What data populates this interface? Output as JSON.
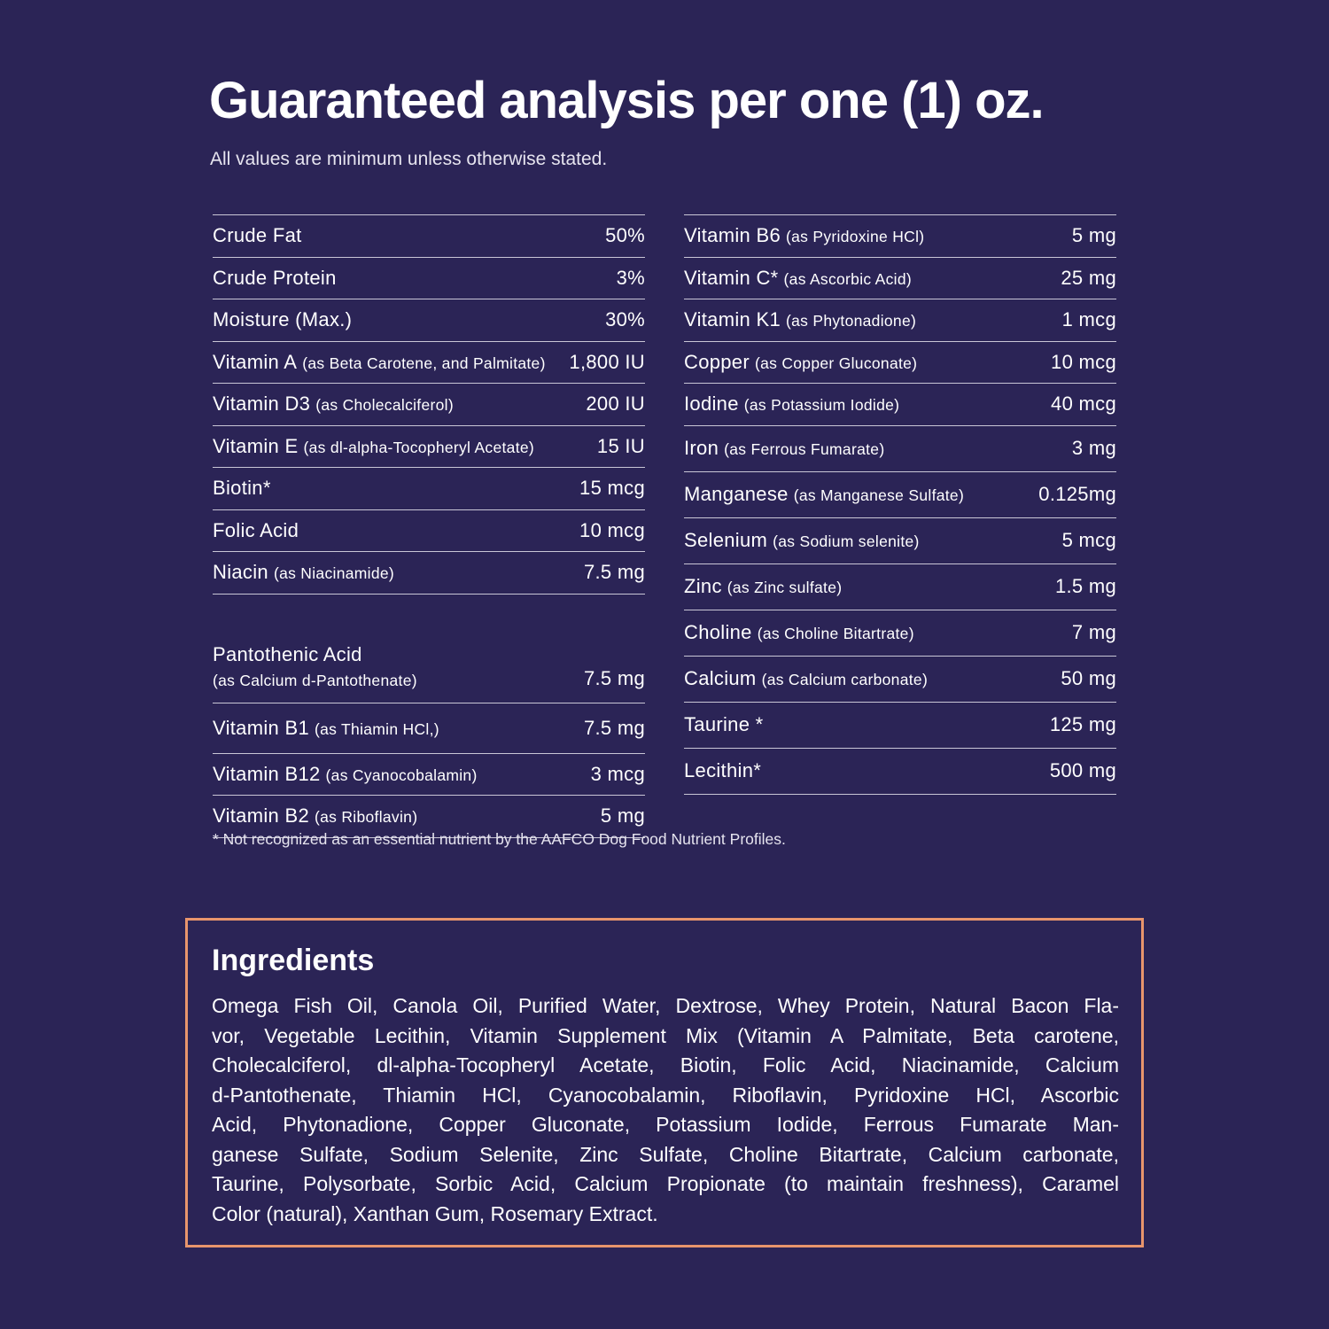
{
  "header": {
    "title": "Guaranteed analysis per one (1) oz.",
    "subtitle": "All values are minimum unless otherwise stated."
  },
  "table": {
    "left": [
      {
        "name": "Crude Fat",
        "value": "50%"
      },
      {
        "name": "Crude Protein",
        "value": "3%"
      },
      {
        "name": "Moisture (Max.)",
        "value": "30%"
      },
      {
        "name": "Vitamin A",
        "note": "(as Beta Carotene, and Palmitate)",
        "value": "1,800 IU"
      },
      {
        "name": "Vitamin D3",
        "note": "(as Cholecalciferol)",
        "value": "200 IU"
      },
      {
        "name": "Vitamin E",
        "note": "(as dl-alpha-Tocopheryl Acetate)",
        "value": "15 IU"
      },
      {
        "name": "Biotin*",
        "value": "15 mcg"
      },
      {
        "name": "Folic Acid",
        "value": "10 mcg"
      },
      {
        "name": "Niacin",
        "note": "(as Niacinamide)",
        "value": "7.5 mg"
      },
      {
        "name": "Pantothenic Acid",
        "note": "(as Calcium d-Pantothenate)",
        "value": "7.5 mg"
      },
      {
        "name": "Vitamin B1",
        "note": "(as Thiamin HCl,)",
        "value": "7.5 mg"
      },
      {
        "name": "Vitamin B12",
        "note": "(as Cyanocobalamin)",
        "value": "3 mcg"
      },
      {
        "name": "Vitamin B2",
        "note": "(as Riboflavin)",
        "value": "5 mg"
      }
    ],
    "right": [
      {
        "name": "Vitamin B6",
        "note": "(as Pyridoxine HCl)",
        "value": "5 mg"
      },
      {
        "name": "Vitamin C*",
        "note": "(as Ascorbic Acid)",
        "value": "25 mg"
      },
      {
        "name": "Vitamin K1",
        "note": "(as Phytonadione)",
        "value": "1 mcg"
      },
      {
        "name": "Copper",
        "note": "(as Copper Gluconate)",
        "value": "10 mcg"
      },
      {
        "name": "Iodine",
        "note": "(as Potassium Iodide)",
        "value": "40 mcg"
      },
      {
        "name": "Iron",
        "note": "(as Ferrous Fumarate)",
        "value": "3 mg"
      },
      {
        "name": "Manganese",
        "note": "(as Manganese Sulfate)",
        "value": "0.125mg"
      },
      {
        "name": "Selenium",
        "note": "(as Sodium selenite)",
        "value": "5 mcg"
      },
      {
        "name": "Zinc",
        "note": "(as Zinc sulfate)",
        "value": "1.5 mg"
      },
      {
        "name": "Choline",
        "note": "(as Choline Bitartrate)",
        "value": "7 mg"
      },
      {
        "name": "Calcium",
        "note": "(as Calcium carbonate)",
        "value": "50 mg"
      },
      {
        "name": "Taurine *",
        "value": "125 mg"
      },
      {
        "name": "Lecithin*",
        "value": "500 mg"
      }
    ]
  },
  "footnote": "* Not recognized as an essential nutrient by the AAFCO Dog Food Nutrient Profiles.",
  "ingredients": {
    "title": "Ingredients",
    "lines": [
      "Omega Fish Oil, Canola Oil, Purified Water, Dextrose, Whey Protein, Natural Bacon Fla-",
      "vor, Vegetable Lecithin, Vitamin Supplement Mix (Vitamin A Palmitate, Beta carotene,",
      "Cholecalciferol, dl-alpha-Tocopheryl Acetate, Biotin, Folic Acid, Niacinamide, Calcium",
      "d-Pantothenate, Thiamin HCl, Cyanocobalamin, Riboflavin, Pyridoxine HCl, Ascorbic",
      "Acid, Phytonadione, Copper Gluconate, Potassium Iodide, Ferrous Fumarate Man-",
      "ganese Sulfate, Sodium Selenite, Zinc Sulfate, Choline Bitartrate, Calcium carbonate,",
      "Taurine, Polysorbate, Sorbic Acid, Calcium Propionate (to maintain freshness), Caramel",
      "Color (natural), Xanthan Gum, Rosemary Extract."
    ]
  }
}
